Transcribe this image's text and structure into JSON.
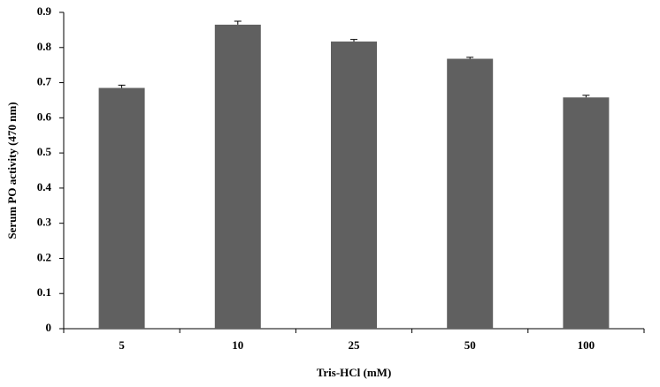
{
  "chart_data": {
    "type": "bar",
    "xlabel": "Tris-HCl (mM)",
    "ylabel": "Serum PO activity (470 nm)",
    "categories": [
      "5",
      "10",
      "25",
      "50",
      "100"
    ],
    "values": [
      0.685,
      0.865,
      0.817,
      0.768,
      0.658
    ],
    "errors": [
      0.008,
      0.01,
      0.006,
      0.004,
      0.006
    ],
    "color": "#606060",
    "ylim": [
      0,
      0.9
    ],
    "yticks": [
      0,
      0.1,
      0.2,
      0.3,
      0.4,
      0.5,
      0.6,
      0.7,
      0.8,
      0.9
    ],
    "grid": false
  }
}
